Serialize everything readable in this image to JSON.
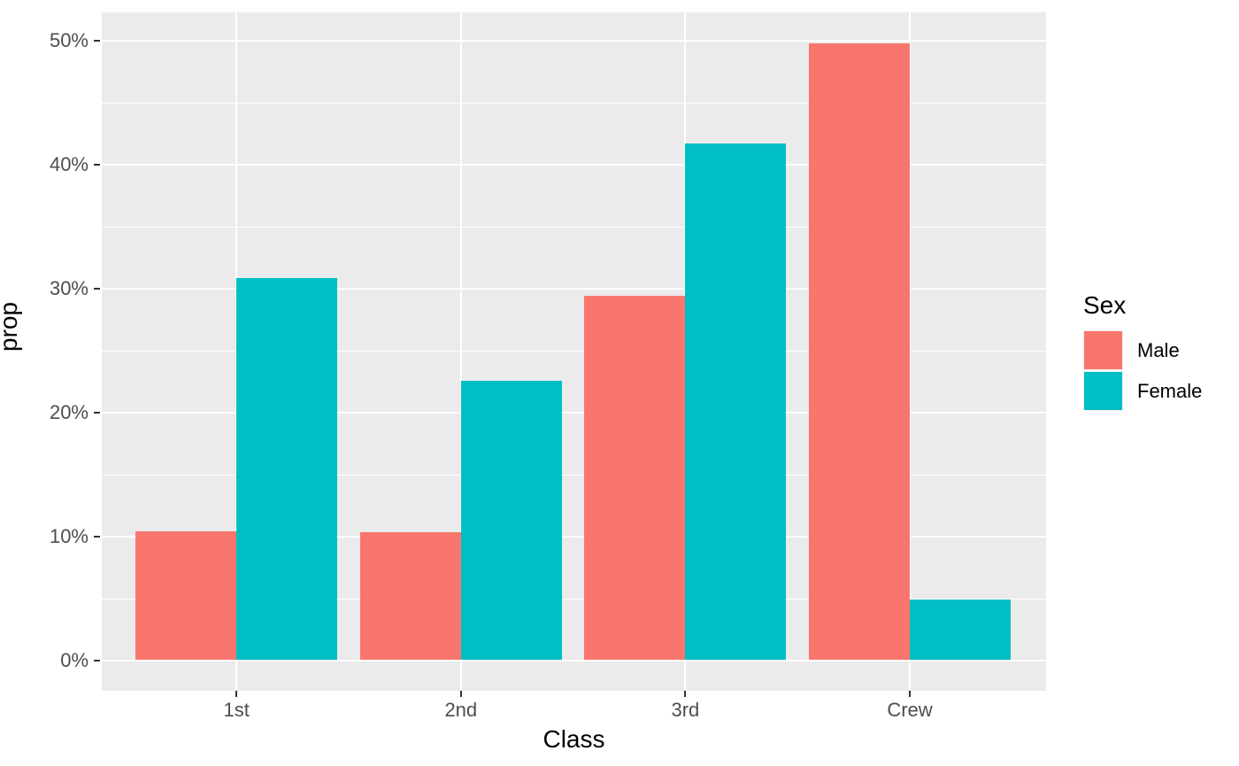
{
  "chart_data": {
    "type": "bar",
    "title": "",
    "xlabel": "Class",
    "ylabel": "prop",
    "categories": [
      "1st",
      "2nd",
      "3rd",
      "Crew"
    ],
    "series": [
      {
        "name": "Male",
        "color": "#F8766D",
        "values": [
          10.4,
          10.34,
          29.46,
          49.8
        ]
      },
      {
        "name": "Female",
        "color": "#00BFC4",
        "values": [
          30.85,
          22.55,
          41.7,
          4.89
        ]
      }
    ],
    "y_ticks": [
      {
        "v": 0,
        "label": "0%"
      },
      {
        "v": 10,
        "label": "10%"
      },
      {
        "v": 20,
        "label": "20%"
      },
      {
        "v": 30,
        "label": "30%"
      },
      {
        "v": 40,
        "label": "40%"
      },
      {
        "v": 50,
        "label": "50%"
      }
    ],
    "y_minor_ticks": [
      5,
      15,
      25,
      35,
      45
    ],
    "ylim": [
      -2.5,
      52.3
    ],
    "grid": "on",
    "legend_title": "Sex",
    "legend_position": "right",
    "bar_layout": "dodged"
  },
  "colors": {
    "panel_background": "#EBEBEB",
    "grid": "#FFFFFF",
    "tick_label": "#4D4D4D",
    "tick_mark": "#333333",
    "axis_title": "#000000",
    "legend_key_background": "#F2F2F2",
    "figure_background": "#FFFFFF"
  }
}
